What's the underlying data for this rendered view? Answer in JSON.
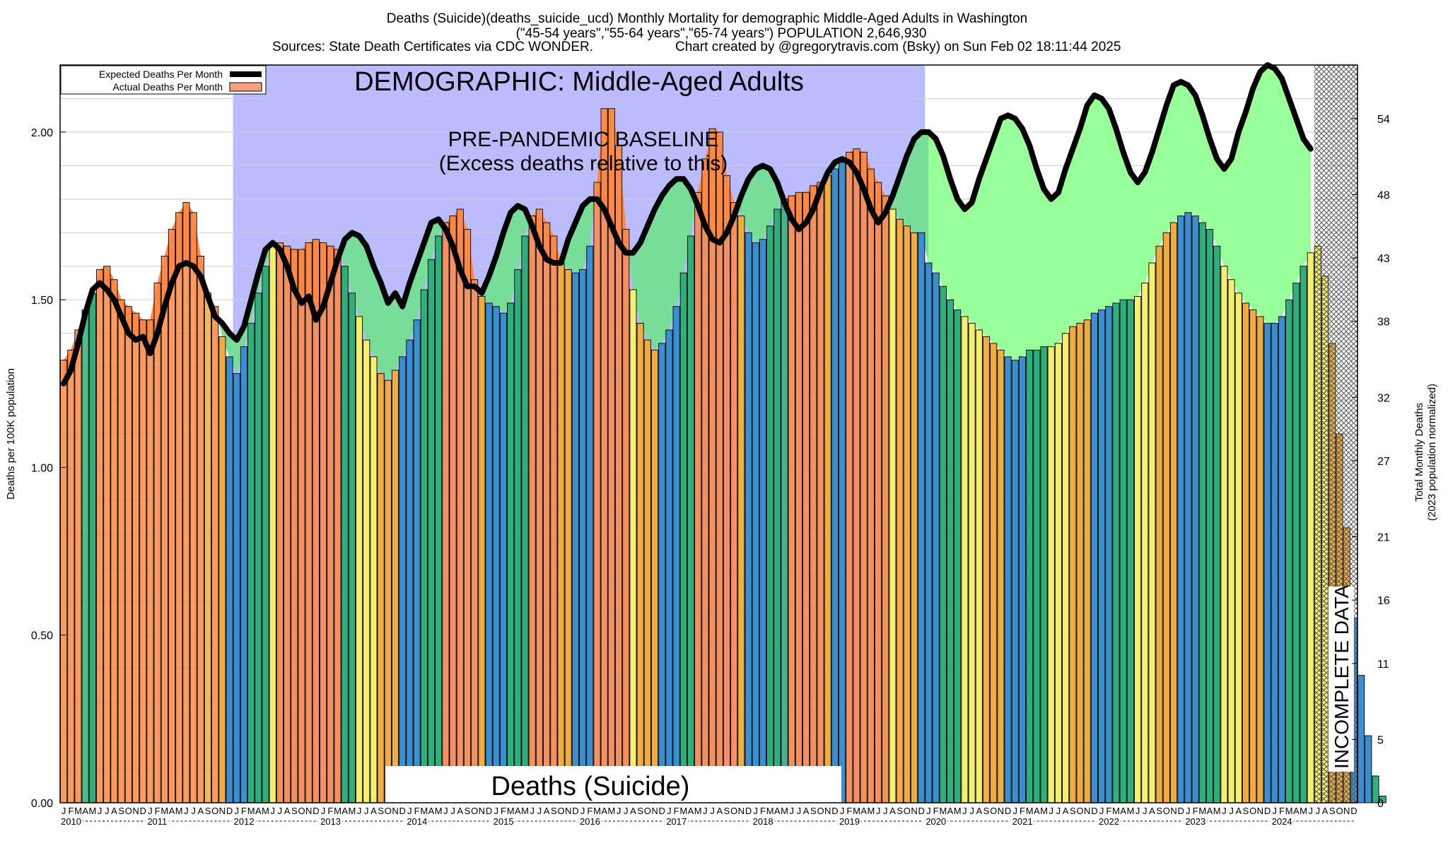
{
  "title": {
    "line1": "Deaths (Suicide)(deaths_suicide_ucd) Monthly Mortality for demographic Middle-Aged Adults in Washington",
    "line2": "(\"45-54 years\",\"55-64 years\",\"65-74 years\") POPULATION 2,646,930",
    "line3a": "Sources: State Death Certificates via CDC WONDER.",
    "line3b": "Chart created by @gregorytravis.com (Bsky) on Sun Feb 02 18:11:44 2025"
  },
  "legend": {
    "expected": "Expected Deaths Per Month",
    "actual": "Actual Deaths Per Month"
  },
  "annotations": {
    "demographic": "DEMOGRAPHIC: Middle-Aged Adults",
    "baseline1": "PRE-PANDEMIC BASELINE",
    "baseline2": "(Excess deaths relative to this)",
    "cause": "Deaths (Suicide)",
    "incomplete": "INCOMPLETE DATA"
  },
  "colors": {
    "baseline_region": "#bbbbff",
    "excess_fill": "#99ff99",
    "deficit_fill": "#77dd99",
    "above_expected": "#ff8844",
    "winter_bar": "#3b8fd0",
    "spring_bar": "#2fb07a",
    "summer_bar": "#f5ef70",
    "fall_bar": "#f0ac40",
    "expected_line": "#000000"
  },
  "chart_data": {
    "type": "bar",
    "xlabel": "",
    "ylabel": "Deaths per 100K population",
    "ylabel_right_line1": "Total Monthly Deaths",
    "ylabel_right_line2": "(2023 population normalized)",
    "ylim": [
      0,
      2.2
    ],
    "yticks": [
      "0.00",
      "0.50",
      "1.00",
      "1.50",
      "2.00"
    ],
    "yticks_right": [
      "0",
      "5",
      "11",
      "16",
      "21",
      "27",
      "32",
      "38",
      "43",
      "48",
      "54"
    ],
    "grid": true,
    "legend_position": "top-left",
    "month_letters": [
      "J",
      "F",
      "M",
      "A",
      "M",
      "J",
      "J",
      "A",
      "S",
      "O",
      "N",
      "D"
    ],
    "years": [
      "2010",
      "2011",
      "2012",
      "2013",
      "2014",
      "2015",
      "2016",
      "2017",
      "2018",
      "2019",
      "2020",
      "2021",
      "2022",
      "2023",
      "2024"
    ],
    "baseline_period": [
      "2012-01",
      "2019-12"
    ],
    "incomplete_from": "2024-07",
    "series": [
      {
        "name": "Actual Deaths Per Month",
        "values": [
          1.32,
          1.35,
          1.41,
          1.47,
          1.52,
          1.59,
          1.6,
          1.56,
          1.5,
          1.48,
          1.46,
          1.44,
          1.44,
          1.55,
          1.63,
          1.71,
          1.76,
          1.79,
          1.76,
          1.63,
          1.52,
          1.48,
          1.39,
          1.33,
          1.28,
          1.36,
          1.43,
          1.52,
          1.6,
          1.66,
          1.67,
          1.66,
          1.65,
          1.65,
          1.67,
          1.68,
          1.67,
          1.66,
          1.65,
          1.6,
          1.52,
          1.45,
          1.38,
          1.33,
          1.28,
          1.26,
          1.29,
          1.33,
          1.38,
          1.44,
          1.53,
          1.62,
          1.69,
          1.73,
          1.75,
          1.77,
          1.71,
          1.56,
          1.51,
          1.49,
          1.48,
          1.46,
          1.49,
          1.59,
          1.69,
          1.75,
          1.77,
          1.73,
          1.69,
          1.61,
          1.59,
          1.58,
          1.59,
          1.66,
          1.85,
          2.07,
          2.07,
          1.96,
          1.71,
          1.53,
          1.43,
          1.38,
          1.35,
          1.37,
          1.41,
          1.48,
          1.58,
          1.69,
          1.82,
          1.92,
          2.01,
          2.0,
          1.87,
          1.79,
          1.75,
          1.7,
          1.67,
          1.68,
          1.72,
          1.77,
          1.8,
          1.81,
          1.82,
          1.82,
          1.84,
          1.85,
          1.87,
          1.89,
          1.91,
          1.94,
          1.95,
          1.94,
          1.89,
          1.85,
          1.81,
          1.77,
          1.74,
          1.72,
          1.7,
          1.7,
          1.61,
          1.58,
          1.54,
          1.5,
          1.47,
          1.45,
          1.43,
          1.41,
          1.39,
          1.37,
          1.35,
          1.33,
          1.32,
          1.33,
          1.35,
          1.35,
          1.36,
          1.36,
          1.37,
          1.4,
          1.42,
          1.43,
          1.44,
          1.46,
          1.47,
          1.48,
          1.49,
          1.5,
          1.5,
          1.51,
          1.55,
          1.61,
          1.66,
          1.7,
          1.73,
          1.75,
          1.76,
          1.75,
          1.73,
          1.71,
          1.66,
          1.6,
          1.56,
          1.52,
          1.49,
          1.47,
          1.45,
          1.43,
          1.43,
          1.45,
          1.5,
          1.55,
          1.6,
          1.64,
          1.66,
          1.57,
          1.37,
          1.1,
          0.82,
          0.55,
          0.38,
          0.2,
          0.08,
          0.02
        ]
      },
      {
        "name": "Expected Deaths Per Month",
        "values": [
          1.25,
          1.29,
          1.37,
          1.46,
          1.53,
          1.55,
          1.53,
          1.5,
          1.45,
          1.4,
          1.38,
          1.39,
          1.34,
          1.4,
          1.48,
          1.55,
          1.6,
          1.61,
          1.6,
          1.57,
          1.51,
          1.45,
          1.43,
          1.4,
          1.38,
          1.42,
          1.5,
          1.58,
          1.65,
          1.67,
          1.65,
          1.6,
          1.53,
          1.49,
          1.51,
          1.44,
          1.48,
          1.55,
          1.62,
          1.68,
          1.7,
          1.69,
          1.66,
          1.6,
          1.55,
          1.49,
          1.52,
          1.48,
          1.55,
          1.61,
          1.67,
          1.73,
          1.74,
          1.71,
          1.66,
          1.59,
          1.54,
          1.54,
          1.52,
          1.57,
          1.63,
          1.7,
          1.76,
          1.78,
          1.77,
          1.72,
          1.66,
          1.62,
          1.61,
          1.61,
          1.68,
          1.73,
          1.78,
          1.8,
          1.8,
          1.77,
          1.72,
          1.67,
          1.64,
          1.64,
          1.67,
          1.72,
          1.77,
          1.81,
          1.84,
          1.86,
          1.86,
          1.83,
          1.78,
          1.72,
          1.68,
          1.67,
          1.7,
          1.75,
          1.81,
          1.86,
          1.89,
          1.9,
          1.89,
          1.85,
          1.79,
          1.74,
          1.71,
          1.73,
          1.77,
          1.83,
          1.88,
          1.91,
          1.92,
          1.91,
          1.88,
          1.83,
          1.77,
          1.73,
          1.76,
          1.81,
          1.87,
          1.93,
          1.98,
          2.0,
          2.0,
          1.98,
          1.93,
          1.86,
          1.8,
          1.77,
          1.79,
          1.86,
          1.92,
          1.98,
          2.04,
          2.05,
          2.04,
          2.01,
          1.96,
          1.89,
          1.83,
          1.8,
          1.82,
          1.89,
          1.95,
          2.01,
          2.08,
          2.11,
          2.1,
          2.07,
          2.01,
          1.94,
          1.88,
          1.85,
          1.88,
          1.94,
          2.01,
          2.08,
          2.14,
          2.15,
          2.14,
          2.11,
          2.05,
          1.98,
          1.92,
          1.89,
          1.92,
          2.0,
          2.06,
          2.13,
          2.18,
          2.2,
          2.19,
          2.16,
          2.1,
          2.04,
          1.98,
          1.95
        ]
      }
    ]
  }
}
